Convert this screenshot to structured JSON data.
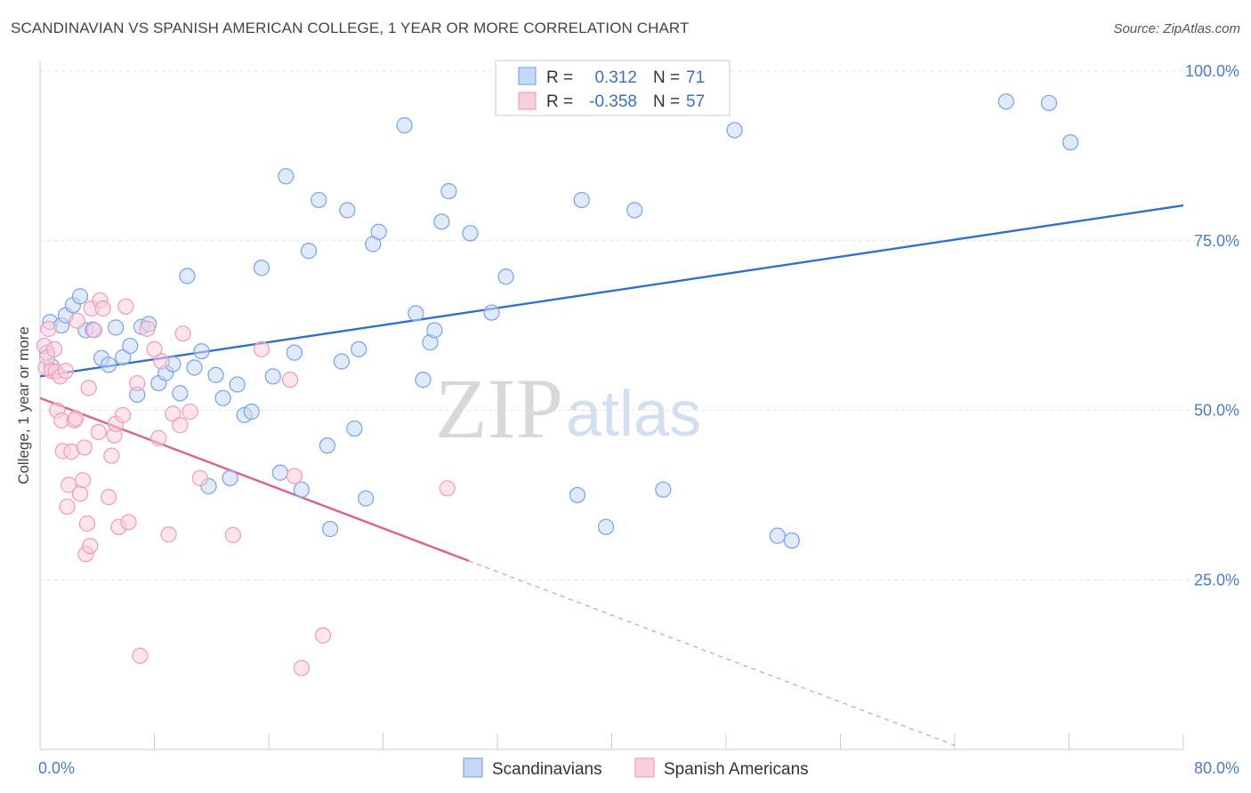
{
  "header": {
    "title": "SCANDINAVIAN VS SPANISH AMERICAN COLLEGE, 1 YEAR OR MORE CORRELATION CHART",
    "source": "Source: ZipAtlas.com"
  },
  "watermark": {
    "zip": "ZIP",
    "atlas": "atlas"
  },
  "legend": {
    "r_label": "R =",
    "n_label": "N =",
    "series": [
      {
        "r": "0.312",
        "n": "71",
        "color": "#7ea8e8"
      },
      {
        "r": "-0.358",
        "n": "57",
        "color": "#f0a0b8"
      }
    ]
  },
  "chart_data": {
    "type": "scatter",
    "title": "SCANDINAVIAN VS SPANISH AMERICAN COLLEGE, 1 YEAR OR MORE CORRELATION CHART",
    "xlabel": "",
    "ylabel": "College, 1 year or more",
    "xlim": [
      0,
      80
    ],
    "ylim": [
      0,
      100
    ],
    "x_tick_labels": [
      "0.0%",
      "80.0%"
    ],
    "y_ticks": [
      25,
      50,
      75,
      100
    ],
    "y_tick_labels": [
      "25.0%",
      "50.0%",
      "75.0%",
      "100.0%"
    ],
    "grid": true,
    "legend_position": "top-center",
    "series": [
      {
        "name": "Scandinavians",
        "color": "#7ea8e8",
        "line_color": "#2f6fcf",
        "trend": {
          "x": [
            0,
            80
          ],
          "y": [
            55.0,
            80.2
          ]
        },
        "points": [
          [
            0.5,
            58.5
          ],
          [
            0.8,
            56.5
          ],
          [
            0.7,
            63.0
          ],
          [
            1.5,
            62.5
          ],
          [
            1.8,
            64.0
          ],
          [
            2.3,
            65.5
          ],
          [
            2.8,
            66.8
          ],
          [
            3.2,
            61.8
          ],
          [
            3.7,
            61.9
          ],
          [
            4.3,
            57.7
          ],
          [
            4.8,
            56.7
          ],
          [
            5.3,
            62.2
          ],
          [
            5.8,
            57.8
          ],
          [
            6.3,
            59.5
          ],
          [
            6.8,
            52.3
          ],
          [
            7.1,
            62.3
          ],
          [
            7.6,
            62.7
          ],
          [
            8.3,
            54.0
          ],
          [
            8.8,
            55.5
          ],
          [
            9.3,
            56.8
          ],
          [
            9.8,
            52.5
          ],
          [
            10.3,
            69.8
          ],
          [
            10.8,
            56.3
          ],
          [
            11.3,
            58.7
          ],
          [
            11.8,
            38.8
          ],
          [
            12.3,
            55.2
          ],
          [
            12.8,
            51.8
          ],
          [
            13.3,
            40.0
          ],
          [
            13.8,
            53.8
          ],
          [
            14.3,
            49.3
          ],
          [
            14.8,
            49.8
          ],
          [
            15.5,
            71.0
          ],
          [
            16.3,
            55.0
          ],
          [
            16.8,
            40.8
          ],
          [
            17.2,
            84.5
          ],
          [
            17.8,
            58.5
          ],
          [
            18.3,
            38.3
          ],
          [
            18.8,
            73.5
          ],
          [
            19.5,
            81.0
          ],
          [
            20.1,
            44.8
          ],
          [
            20.3,
            32.5
          ],
          [
            21.1,
            57.2
          ],
          [
            21.5,
            79.5
          ],
          [
            22.0,
            47.3
          ],
          [
            22.3,
            59.0
          ],
          [
            22.8,
            37.0
          ],
          [
            23.3,
            74.5
          ],
          [
            23.7,
            76.3
          ],
          [
            25.5,
            92.0
          ],
          [
            26.3,
            64.3
          ],
          [
            26.8,
            54.5
          ],
          [
            27.3,
            60.0
          ],
          [
            27.6,
            61.8
          ],
          [
            28.1,
            77.8
          ],
          [
            28.6,
            82.3
          ],
          [
            30.1,
            76.1
          ],
          [
            31.6,
            64.4
          ],
          [
            32.6,
            69.7
          ],
          [
            34.6,
            95.0
          ],
          [
            37.6,
            37.5
          ],
          [
            37.9,
            81.0
          ],
          [
            39.6,
            32.8
          ],
          [
            41.6,
            79.5
          ],
          [
            43.6,
            38.3
          ],
          [
            46.6,
            99.8
          ],
          [
            48.6,
            91.3
          ],
          [
            51.6,
            31.5
          ],
          [
            52.6,
            30.8
          ],
          [
            67.6,
            95.5
          ],
          [
            70.6,
            95.3
          ],
          [
            72.1,
            89.5
          ]
        ]
      },
      {
        "name": "Spanish Americans",
        "color": "#f0a0b8",
        "line_color": "#e06090",
        "trend": {
          "x": [
            0,
            30
          ],
          "y": [
            51.8,
            27.8
          ]
        },
        "trend_dashed": {
          "x": [
            30,
            64
          ],
          "y": [
            27.8,
            0.6
          ]
        },
        "points": [
          [
            0.3,
            59.5
          ],
          [
            0.4,
            56.3
          ],
          [
            0.5,
            57.8
          ],
          [
            0.6,
            62.0
          ],
          [
            0.8,
            55.8
          ],
          [
            1.0,
            59.0
          ],
          [
            1.1,
            55.7
          ],
          [
            1.2,
            50.0
          ],
          [
            1.4,
            55.0
          ],
          [
            1.5,
            48.5
          ],
          [
            1.6,
            44.0
          ],
          [
            1.8,
            55.8
          ],
          [
            1.9,
            35.8
          ],
          [
            2.0,
            39.0
          ],
          [
            2.2,
            43.9
          ],
          [
            2.4,
            48.5
          ],
          [
            2.5,
            48.8
          ],
          [
            2.6,
            63.2
          ],
          [
            2.8,
            37.7
          ],
          [
            3.0,
            39.7
          ],
          [
            3.1,
            44.5
          ],
          [
            3.2,
            28.8
          ],
          [
            3.3,
            33.3
          ],
          [
            3.4,
            53.3
          ],
          [
            3.5,
            30.0
          ],
          [
            3.6,
            65.0
          ],
          [
            3.8,
            61.8
          ],
          [
            4.1,
            46.8
          ],
          [
            4.2,
            66.2
          ],
          [
            4.4,
            65.0
          ],
          [
            4.8,
            37.2
          ],
          [
            5.0,
            43.3
          ],
          [
            5.2,
            46.3
          ],
          [
            5.3,
            48.0
          ],
          [
            5.5,
            32.8
          ],
          [
            5.8,
            49.3
          ],
          [
            6.0,
            65.3
          ],
          [
            6.2,
            33.5
          ],
          [
            6.8,
            54.0
          ],
          [
            7.0,
            13.8
          ],
          [
            7.5,
            62.0
          ],
          [
            8.3,
            45.9
          ],
          [
            8.5,
            57.2
          ],
          [
            9.0,
            31.7
          ],
          [
            9.3,
            49.5
          ],
          [
            9.8,
            47.8
          ],
          [
            10.0,
            61.3
          ],
          [
            10.5,
            49.8
          ],
          [
            11.2,
            40.0
          ],
          [
            13.5,
            31.6
          ],
          [
            15.5,
            59.0
          ],
          [
            17.5,
            54.5
          ],
          [
            17.8,
            40.3
          ],
          [
            18.3,
            12.0
          ],
          [
            19.8,
            16.8
          ],
          [
            28.5,
            38.5
          ],
          [
            8.0,
            59.0
          ]
        ]
      }
    ]
  }
}
